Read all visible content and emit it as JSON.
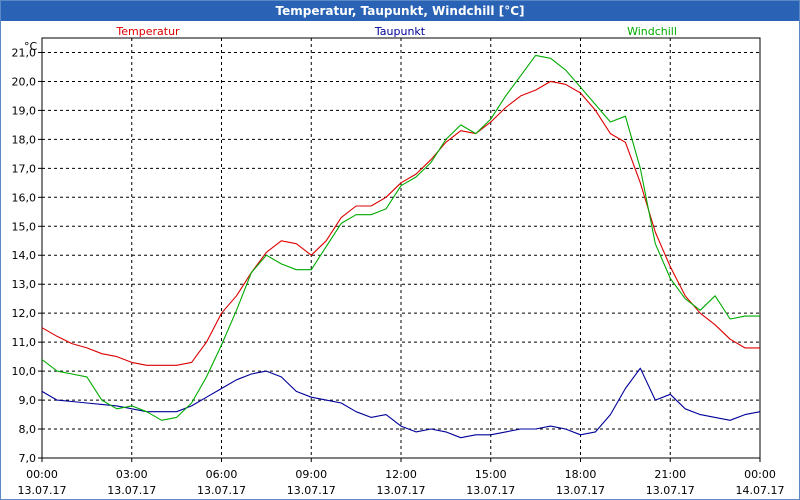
{
  "window": {
    "title": "Temperatur, Taupunkt, Windchill [°C]"
  },
  "chart_data": {
    "type": "line",
    "title": "Temperatur, Taupunkt, Windchill [°C]",
    "ylabel": "°C",
    "xlabel": "",
    "ylim": [
      7.0,
      21.5
    ],
    "y_ticks": [
      "21,0",
      "20,0",
      "19,0",
      "18,0",
      "17,0",
      "16,0",
      "15,0",
      "14,0",
      "13,0",
      "12,0",
      "11,0",
      "10,0",
      "9,0",
      "8,0",
      "7,0"
    ],
    "x_ticks": [
      {
        "time": "00:00",
        "date": "13.07.17"
      },
      {
        "time": "03:00",
        "date": "13.07.17"
      },
      {
        "time": "06:00",
        "date": "13.07.17"
      },
      {
        "time": "09:00",
        "date": "13.07.17"
      },
      {
        "time": "12:00",
        "date": "13.07.17"
      },
      {
        "time": "15:00",
        "date": "13.07.17"
      },
      {
        "time": "18:00",
        "date": "13.07.17"
      },
      {
        "time": "21:00",
        "date": "13.07.17"
      },
      {
        "time": "00:00",
        "date": "14.07.17"
      }
    ],
    "grid": true,
    "series": [
      {
        "name": "Temperatur",
        "color": "#dd0000",
        "x": [
          0,
          0.5,
          1.0,
          1.5,
          2.0,
          2.5,
          3.0,
          3.5,
          4.0,
          4.5,
          5.0,
          5.5,
          6.0,
          6.5,
          7.0,
          7.5,
          8.0,
          8.5,
          9.0,
          9.5,
          10.0,
          10.5,
          11.0,
          11.5,
          12.0,
          12.5,
          13.0,
          13.5,
          14.0,
          14.5,
          15.0,
          15.5,
          16.0,
          16.5,
          17.0,
          17.5,
          18.0,
          18.5,
          19.0,
          19.5,
          20.0,
          20.5,
          21.0,
          21.5,
          22.0,
          22.5,
          23.0,
          23.5,
          24.0
        ],
        "values": [
          11.5,
          11.2,
          10.95,
          10.8,
          10.6,
          10.5,
          10.3,
          10.2,
          10.2,
          10.2,
          10.3,
          11.0,
          12.0,
          12.6,
          13.4,
          14.1,
          14.5,
          14.4,
          14.0,
          14.5,
          15.3,
          15.7,
          15.7,
          16.0,
          16.5,
          16.8,
          17.3,
          17.9,
          18.3,
          18.2,
          18.6,
          19.1,
          19.5,
          19.7,
          20.0,
          19.9,
          19.6,
          19.0,
          18.2,
          17.9,
          16.5,
          14.8,
          13.6,
          12.6,
          12.0,
          11.6,
          11.1,
          10.8,
          10.8
        ]
      },
      {
        "name": "Taupunkt",
        "color": "#000099",
        "x": [
          0,
          0.5,
          1.0,
          1.5,
          2.0,
          2.5,
          3.0,
          3.5,
          4.0,
          4.5,
          5.0,
          5.5,
          6.0,
          6.5,
          7.0,
          7.5,
          8.0,
          8.5,
          9.0,
          9.5,
          10.0,
          10.5,
          11.0,
          11.5,
          12.0,
          12.5,
          13.0,
          13.5,
          14.0,
          14.5,
          15.0,
          15.5,
          16.0,
          16.5,
          17.0,
          17.5,
          18.0,
          18.5,
          19.0,
          19.5,
          20.0,
          20.5,
          21.0,
          21.5,
          22.0,
          22.5,
          23.0,
          23.5,
          24.0
        ],
        "values": [
          9.3,
          9.0,
          8.95,
          8.9,
          8.85,
          8.8,
          8.7,
          8.6,
          8.6,
          8.6,
          8.8,
          9.1,
          9.4,
          9.7,
          9.9,
          10.0,
          9.8,
          9.3,
          9.1,
          9.0,
          8.9,
          8.6,
          8.4,
          8.5,
          8.1,
          7.9,
          8.0,
          7.9,
          7.7,
          7.8,
          7.8,
          7.9,
          8.0,
          8.0,
          8.1,
          8.0,
          7.8,
          7.9,
          8.5,
          9.4,
          10.1,
          9.0,
          9.2,
          8.7,
          8.5,
          8.4,
          8.3,
          8.5,
          8.6
        ]
      },
      {
        "name": "Windchill",
        "color": "#00aa00",
        "x": [
          0,
          0.5,
          1.0,
          1.5,
          2.0,
          2.5,
          3.0,
          3.5,
          4.0,
          4.5,
          5.0,
          5.5,
          6.0,
          6.5,
          7.0,
          7.5,
          8.0,
          8.5,
          9.0,
          9.5,
          10.0,
          10.5,
          11.0,
          11.5,
          12.0,
          12.5,
          13.0,
          13.5,
          14.0,
          14.5,
          15.0,
          15.5,
          16.0,
          16.5,
          17.0,
          17.5,
          18.0,
          18.5,
          19.0,
          19.5,
          20.0,
          20.5,
          21.0,
          21.5,
          22.0,
          22.5,
          23.0,
          23.5,
          24.0
        ],
        "values": [
          10.4,
          10.0,
          9.9,
          9.8,
          9.0,
          8.7,
          8.8,
          8.6,
          8.3,
          8.4,
          8.9,
          9.8,
          10.9,
          12.1,
          13.4,
          14.0,
          13.7,
          13.5,
          13.5,
          14.3,
          15.1,
          15.4,
          15.4,
          15.6,
          16.4,
          16.7,
          17.2,
          18.0,
          18.5,
          18.2,
          18.7,
          19.5,
          20.2,
          20.9,
          20.8,
          20.4,
          19.8,
          19.2,
          18.6,
          18.8,
          17.0,
          14.4,
          13.2,
          12.5,
          12.1,
          12.6,
          11.8,
          11.9,
          11.9
        ]
      }
    ]
  }
}
